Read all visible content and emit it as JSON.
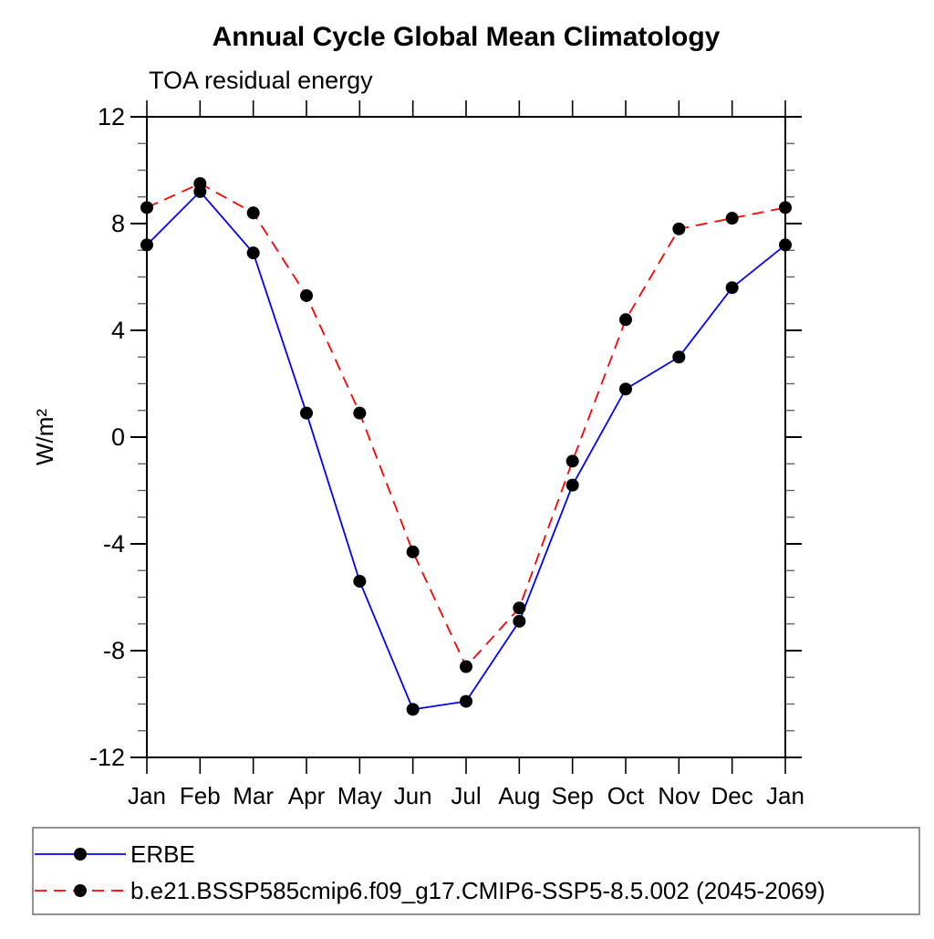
{
  "chart_data": {
    "type": "line",
    "title": "Annual Cycle Global Mean Climatology",
    "subtitle": "TOA residual energy",
    "ylabel": "W/m²",
    "ylim": [
      -12,
      12
    ],
    "ytick_major": 4,
    "ytick_minor": 1,
    "grid": false,
    "legend_position": "bottom",
    "categories": [
      "Jan",
      "Feb",
      "Mar",
      "Apr",
      "May",
      "Jun",
      "Jul",
      "Aug",
      "Sep",
      "Oct",
      "Nov",
      "Dec",
      "Jan"
    ],
    "series": [
      {
        "name": "ERBE",
        "color": "#0000ff",
        "line_style": "solid",
        "dash": "none",
        "marker": "filled-circle",
        "marker_color": "#000000",
        "values": [
          7.2,
          9.2,
          6.9,
          0.9,
          -5.4,
          -10.2,
          -9.9,
          -6.9,
          -1.8,
          1.8,
          3.0,
          5.6,
          7.2
        ]
      },
      {
        "name": "b.e21.BSSP585cmip6.f09_g17.CMIP6-SSP5-8.5.002 (2045-2069)",
        "color": "#ff0000",
        "line_style": "dashed",
        "dash": "13,8",
        "marker": "filled-circle",
        "marker_color": "#000000",
        "values": [
          8.6,
          9.5,
          8.4,
          5.3,
          0.9,
          -4.3,
          -8.6,
          -6.4,
          -0.9,
          4.4,
          7.8,
          8.2,
          8.6
        ]
      }
    ]
  }
}
